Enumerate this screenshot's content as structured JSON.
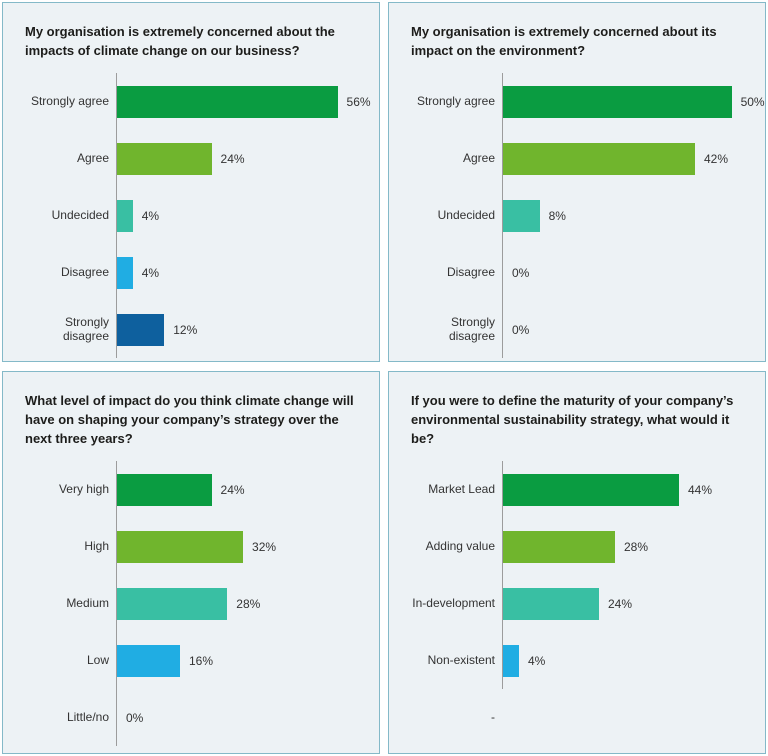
{
  "page": {
    "background": "#ffffff",
    "panel_background": "#edf2f5",
    "panel_border_color": "#84b9c8",
    "axis_color": "#9c9c9c",
    "title_color": "#1d1d1b",
    "label_color": "#333333"
  },
  "palette": {
    "dark_green": "#0a9c41",
    "light_green": "#70b52d",
    "teal": "#39bfa3",
    "cyan": "#20ade3",
    "dark_blue": "#0e609e"
  },
  "chart_data": [
    {
      "type": "bar",
      "orientation": "horizontal",
      "title": "My organisation is extremely concerned about the impacts of climate change on our business?",
      "categories": [
        "Strongly agree",
        "Agree",
        "Undecided",
        "Disagree",
        "Strongly disagree"
      ],
      "values": [
        56,
        24,
        4,
        4,
        12
      ],
      "value_labels": [
        "56%",
        "24%",
        "4%",
        "4%",
        "12%"
      ],
      "bar_colors": [
        "#0a9c41",
        "#70b52d",
        "#39bfa3",
        "#20ade3",
        "#0e609e"
      ],
      "xlim": [
        0,
        65
      ],
      "grid": false,
      "legend": "none"
    },
    {
      "type": "bar",
      "orientation": "horizontal",
      "title": "My organisation is extremely concerned about its impact on the environment?",
      "categories": [
        "Strongly agree",
        "Agree",
        "Undecided",
        "Disagree",
        "Strongly disagree"
      ],
      "values": [
        50,
        42,
        8,
        0,
        0
      ],
      "value_labels": [
        "50%",
        "42%",
        "8%",
        "0%",
        "0%"
      ],
      "bar_colors": [
        "#0a9c41",
        "#70b52d",
        "#39bfa3",
        null,
        null
      ],
      "xlim": [
        0,
        56
      ],
      "grid": false,
      "legend": "none"
    },
    {
      "type": "bar",
      "orientation": "horizontal",
      "title": "What level of impact do you think climate change will have on shaping your company’s strategy over the next three years?",
      "categories": [
        "Very high",
        "High",
        "Medium",
        "Low",
        "Little/no"
      ],
      "values": [
        24,
        32,
        28,
        16,
        0
      ],
      "value_labels": [
        "24%",
        "32%",
        "28%",
        "16%",
        "0%"
      ],
      "bar_colors": [
        "#0a9c41",
        "#70b52d",
        "#39bfa3",
        "#20ade3",
        null
      ],
      "xlim": [
        0,
        65
      ],
      "grid": false,
      "legend": "none"
    },
    {
      "type": "bar",
      "orientation": "horizontal",
      "title": "If you were to define the maturity of your company’s environmental sustainability strategy, what would it be?",
      "categories": [
        "Market Lead",
        "Adding value",
        "In-development",
        "Non-existent",
        "-"
      ],
      "values": [
        44,
        28,
        24,
        4,
        null
      ],
      "value_labels": [
        "44%",
        "28%",
        "24%",
        "4%",
        ""
      ],
      "bar_colors": [
        "#0a9c41",
        "#70b52d",
        "#39bfa3",
        "#20ade3",
        null
      ],
      "xlim": [
        0,
        64
      ],
      "grid": false,
      "legend": "none"
    }
  ]
}
